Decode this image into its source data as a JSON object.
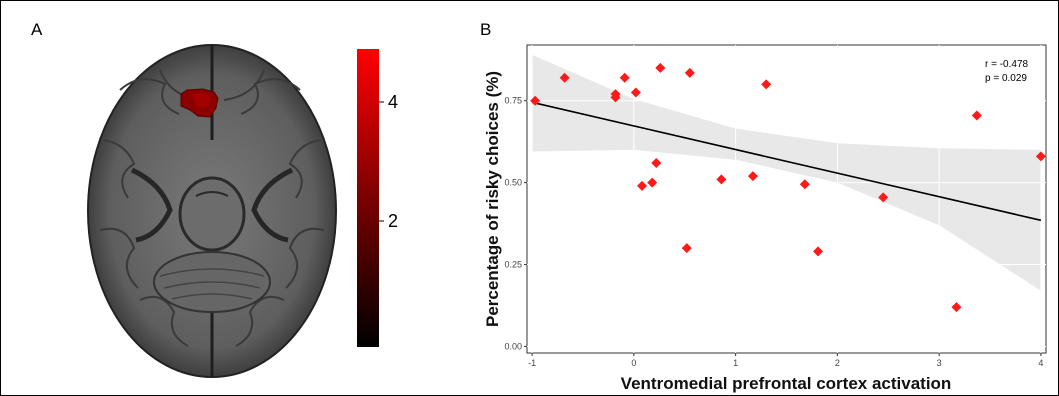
{
  "panels": {
    "a_label": "A",
    "b_label": "B"
  },
  "brain_colorbar": {
    "tick_labels": [
      "4",
      "2"
    ],
    "tick_values": [
      4,
      2
    ],
    "range": [
      0,
      4.8
    ],
    "colors": {
      "high": "#ff0000",
      "low": "#000000"
    }
  },
  "chart_data": {
    "type": "scatter",
    "xlabel": "Ventromedial prefrontal cortex activation",
    "ylabel": "Percentage of risky choices (%)",
    "xlim": [
      -1.05,
      4.05
    ],
    "ylim": [
      -0.02,
      0.92
    ],
    "x_ticks": [
      -1,
      0,
      1,
      2,
      3,
      4
    ],
    "x_tick_labels": [
      "-1",
      "0",
      "1",
      "2",
      "3",
      "4"
    ],
    "y_ticks": [
      0.0,
      0.25,
      0.5,
      0.75
    ],
    "y_tick_labels": [
      "0.00",
      "0.25",
      "0.50",
      "0.75"
    ],
    "grid": true,
    "annotations": [
      "r = -0.478",
      "p = 0.029"
    ],
    "regression": {
      "x": [
        -1,
        4
      ],
      "y": [
        0.745,
        0.385
      ]
    },
    "confidence_band": {
      "x": [
        -1,
        0,
        1,
        2,
        3,
        4
      ],
      "upper": [
        0.89,
        0.755,
        0.665,
        0.62,
        0.605,
        0.6
      ],
      "lower": [
        0.595,
        0.6,
        0.57,
        0.5,
        0.37,
        0.17
      ]
    },
    "points": [
      {
        "x": -0.97,
        "y": 0.75
      },
      {
        "x": -0.68,
        "y": 0.82
      },
      {
        "x": -0.18,
        "y": 0.77
      },
      {
        "x": -0.18,
        "y": 0.76
      },
      {
        "x": -0.09,
        "y": 0.82
      },
      {
        "x": 0.02,
        "y": 0.775
      },
      {
        "x": 0.08,
        "y": 0.49
      },
      {
        "x": 0.18,
        "y": 0.5
      },
      {
        "x": 0.22,
        "y": 0.56
      },
      {
        "x": 0.26,
        "y": 0.85
      },
      {
        "x": 0.52,
        "y": 0.3
      },
      {
        "x": 0.55,
        "y": 0.835
      },
      {
        "x": 0.86,
        "y": 0.51
      },
      {
        "x": 1.17,
        "y": 0.52
      },
      {
        "x": 1.3,
        "y": 0.8
      },
      {
        "x": 1.68,
        "y": 0.495
      },
      {
        "x": 1.81,
        "y": 0.29
      },
      {
        "x": 2.45,
        "y": 0.455
      },
      {
        "x": 3.17,
        "y": 0.12
      },
      {
        "x": 3.37,
        "y": 0.705
      },
      {
        "x": 4.0,
        "y": 0.58
      }
    ],
    "colors": {
      "points": "#ff1a1a",
      "line": "#000000",
      "band": "#e8e8e8",
      "grid": "#ffffff"
    }
  }
}
